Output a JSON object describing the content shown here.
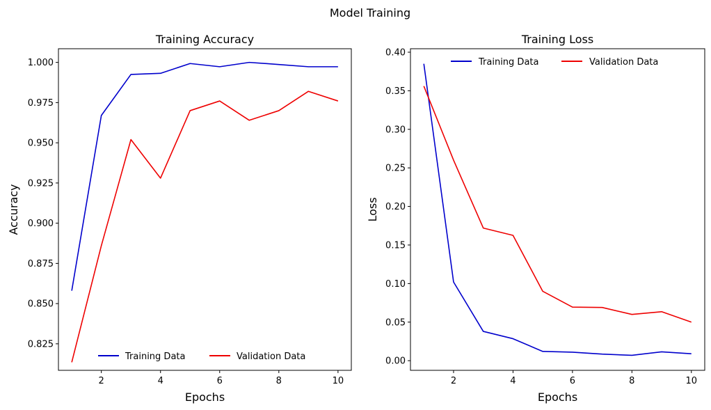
{
  "figure": {
    "title": "Model Training"
  },
  "chart_data": [
    {
      "type": "line",
      "title": "Training Accuracy",
      "xlabel": "Epochs",
      "ylabel": "Accuracy",
      "x": [
        1,
        2,
        3,
        4,
        5,
        6,
        7,
        8,
        9,
        10
      ],
      "xlim": [
        0.55,
        10.45
      ],
      "ylim": [
        0.8085,
        1.0085
      ],
      "xticks": [
        2,
        4,
        6,
        8,
        10
      ],
      "yticks": [
        0.825,
        0.85,
        0.875,
        0.9,
        0.925,
        0.95,
        0.975,
        1.0
      ],
      "ytick_labels": [
        "0.825",
        "0.850",
        "0.875",
        "0.900",
        "0.925",
        "0.950",
        "0.975",
        "1.000"
      ],
      "grid": false,
      "legend": "lower-center",
      "series": [
        {
          "name": "Training Data",
          "color": "#0000cc",
          "values": [
            0.858,
            0.967,
            0.9925,
            0.9932,
            0.9993,
            0.9973,
            1.0,
            0.9987,
            0.9973,
            0.9973
          ]
        },
        {
          "name": "Validation Data",
          "color": "#ee0000",
          "values": [
            0.8135,
            0.886,
            0.952,
            0.928,
            0.97,
            0.976,
            0.964,
            0.97,
            0.982,
            0.976
          ]
        }
      ]
    },
    {
      "type": "line",
      "title": "Training Loss",
      "xlabel": "Epochs",
      "ylabel": "Loss",
      "x": [
        1,
        2,
        3,
        4,
        5,
        6,
        7,
        8,
        9,
        10
      ],
      "xlim": [
        0.55,
        10.45
      ],
      "ylim": [
        -0.0125,
        0.4045
      ],
      "xticks": [
        2,
        4,
        6,
        8,
        10
      ],
      "yticks": [
        0.0,
        0.05,
        0.1,
        0.15,
        0.2,
        0.25,
        0.3,
        0.35,
        0.4
      ],
      "ytick_labels": [
        "0.00",
        "0.05",
        "0.10",
        "0.15",
        "0.20",
        "0.25",
        "0.30",
        "0.35",
        "0.40"
      ],
      "grid": false,
      "legend": "upper-center",
      "series": [
        {
          "name": "Training Data",
          "color": "#0000cc",
          "values": [
            0.385,
            0.102,
            0.038,
            0.0285,
            0.012,
            0.011,
            0.0085,
            0.007,
            0.0115,
            0.009
          ]
        },
        {
          "name": "Validation Data",
          "color": "#ee0000",
          "values": [
            0.356,
            0.26,
            0.172,
            0.1625,
            0.09,
            0.0695,
            0.069,
            0.06,
            0.0635,
            0.05
          ]
        }
      ]
    }
  ]
}
